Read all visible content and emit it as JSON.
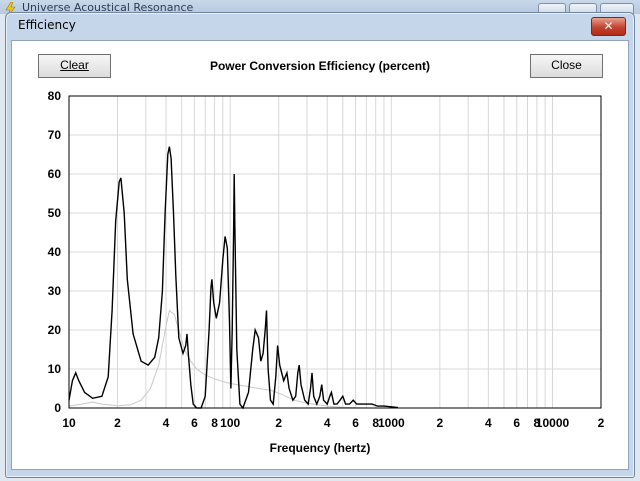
{
  "background_window": {
    "title": "Universe Acoustical Resonance"
  },
  "dialog": {
    "title": "Efficiency",
    "close_glyph": "✕",
    "clear_label": "Clear",
    "close_label": "Close"
  },
  "colors": {
    "series_main": "#000000",
    "series_faint": "#c8c8c8",
    "grid": "#d8d8d8"
  },
  "chart_data": {
    "type": "line",
    "title": "Power Conversion Efficiency (percent)",
    "xlabel": "Frequency (hertz)",
    "ylabel": "",
    "x_scale": "log",
    "xlim": [
      10,
      20000
    ],
    "ylim": [
      0,
      80
    ],
    "grid": true,
    "y_ticks": [
      "0",
      "10",
      "20",
      "30",
      "40",
      "50",
      "60",
      "70",
      "80"
    ],
    "x_ticks": [
      {
        "v": 10,
        "label": "10"
      },
      {
        "v": 20,
        "label": "2"
      },
      {
        "v": 40,
        "label": "4"
      },
      {
        "v": 60,
        "label": "6"
      },
      {
        "v": 80,
        "label": "8"
      },
      {
        "v": 100,
        "label": "100"
      },
      {
        "v": 200,
        "label": "2"
      },
      {
        "v": 400,
        "label": "4"
      },
      {
        "v": 600,
        "label": "6"
      },
      {
        "v": 800,
        "label": "8"
      },
      {
        "v": 1000,
        "label": "1000"
      },
      {
        "v": 2000,
        "label": "2"
      },
      {
        "v": 4000,
        "label": "4"
      },
      {
        "v": 6000,
        "label": "6"
      },
      {
        "v": 8000,
        "label": "8"
      },
      {
        "v": 10000,
        "label": "10000"
      },
      {
        "v": 20000,
        "label": "2"
      }
    ],
    "series": [
      {
        "color": "#000000",
        "points": [
          [
            10,
            2
          ],
          [
            10.5,
            7
          ],
          [
            11,
            9
          ],
          [
            11.5,
            7
          ],
          [
            12.5,
            4
          ],
          [
            14,
            2.5
          ],
          [
            16,
            3
          ],
          [
            17.5,
            8
          ],
          [
            18.5,
            25
          ],
          [
            19.5,
            48
          ],
          [
            20.5,
            58
          ],
          [
            21,
            59
          ],
          [
            22,
            50
          ],
          [
            23,
            33
          ],
          [
            25,
            19
          ],
          [
            28,
            12
          ],
          [
            31,
            11
          ],
          [
            34,
            13
          ],
          [
            36,
            18
          ],
          [
            38,
            30
          ],
          [
            39.5,
            50
          ],
          [
            41,
            65
          ],
          [
            42,
            67
          ],
          [
            43,
            64
          ],
          [
            44.5,
            50
          ],
          [
            46,
            34
          ],
          [
            48,
            18
          ],
          [
            51,
            14
          ],
          [
            53,
            16
          ],
          [
            54,
            19
          ],
          [
            55,
            14
          ],
          [
            57,
            6
          ],
          [
            59,
            1
          ],
          [
            62,
            0
          ],
          [
            66,
            0
          ],
          [
            70,
            3
          ],
          [
            74,
            20
          ],
          [
            76,
            31
          ],
          [
            77,
            33
          ],
          [
            79,
            27
          ],
          [
            82,
            23
          ],
          [
            86,
            27
          ],
          [
            90,
            38
          ],
          [
            93,
            44
          ],
          [
            96,
            41
          ],
          [
            99,
            22
          ],
          [
            101,
            5
          ],
          [
            103,
            20
          ],
          [
            105,
            45
          ],
          [
            106,
            60
          ],
          [
            107,
            46
          ],
          [
            110,
            15
          ],
          [
            115,
            1
          ],
          [
            120,
            0
          ],
          [
            130,
            4
          ],
          [
            138,
            15
          ],
          [
            143,
            20
          ],
          [
            150,
            18
          ],
          [
            155,
            12
          ],
          [
            160,
            14
          ],
          [
            165,
            20
          ],
          [
            168,
            25
          ],
          [
            172,
            10
          ],
          [
            178,
            2
          ],
          [
            185,
            1
          ],
          [
            192,
            8
          ],
          [
            197,
            16
          ],
          [
            203,
            11
          ],
          [
            215,
            7
          ],
          [
            225,
            9
          ],
          [
            232,
            5
          ],
          [
            245,
            2
          ],
          [
            255,
            3
          ],
          [
            263,
            9
          ],
          [
            268,
            11
          ],
          [
            275,
            6
          ],
          [
            290,
            2
          ],
          [
            305,
            1
          ],
          [
            315,
            5
          ],
          [
            322,
            9
          ],
          [
            330,
            3
          ],
          [
            345,
            1
          ],
          [
            360,
            3
          ],
          [
            370,
            6
          ],
          [
            380,
            2
          ],
          [
            400,
            1
          ],
          [
            415,
            3
          ],
          [
            425,
            4
          ],
          [
            440,
            1
          ],
          [
            460,
            1
          ],
          [
            480,
            2
          ],
          [
            500,
            3
          ],
          [
            520,
            1
          ],
          [
            550,
            1
          ],
          [
            580,
            2
          ],
          [
            610,
            1
          ],
          [
            660,
            1
          ],
          [
            700,
            1
          ],
          [
            760,
            1
          ],
          [
            820,
            0.5
          ],
          [
            900,
            0.5
          ],
          [
            1000,
            0.3
          ],
          [
            1100,
            0.1
          ]
        ]
      },
      {
        "color": "#c8c8c8",
        "points": [
          [
            10,
            0.5
          ],
          [
            12,
            1
          ],
          [
            14,
            1.5
          ],
          [
            16,
            1
          ],
          [
            18,
            0.8
          ],
          [
            20,
            0.6
          ],
          [
            24,
            0.8
          ],
          [
            28,
            2
          ],
          [
            32,
            5
          ],
          [
            36,
            11
          ],
          [
            40,
            21
          ],
          [
            42,
            25
          ],
          [
            45,
            24
          ],
          [
            48,
            20
          ],
          [
            52,
            15
          ],
          [
            57,
            12
          ],
          [
            62,
            10
          ],
          [
            70,
            8.5
          ],
          [
            80,
            7.5
          ],
          [
            95,
            6.5
          ],
          [
            110,
            6
          ],
          [
            130,
            5.5
          ],
          [
            150,
            5
          ],
          [
            180,
            4.5
          ],
          [
            210,
            3.5
          ],
          [
            250,
            2
          ],
          [
            300,
            1.2
          ],
          [
            400,
            0.5
          ],
          [
            500,
            0.2
          ],
          [
            600,
            0.05
          ],
          [
            700,
            0
          ]
        ]
      }
    ]
  }
}
